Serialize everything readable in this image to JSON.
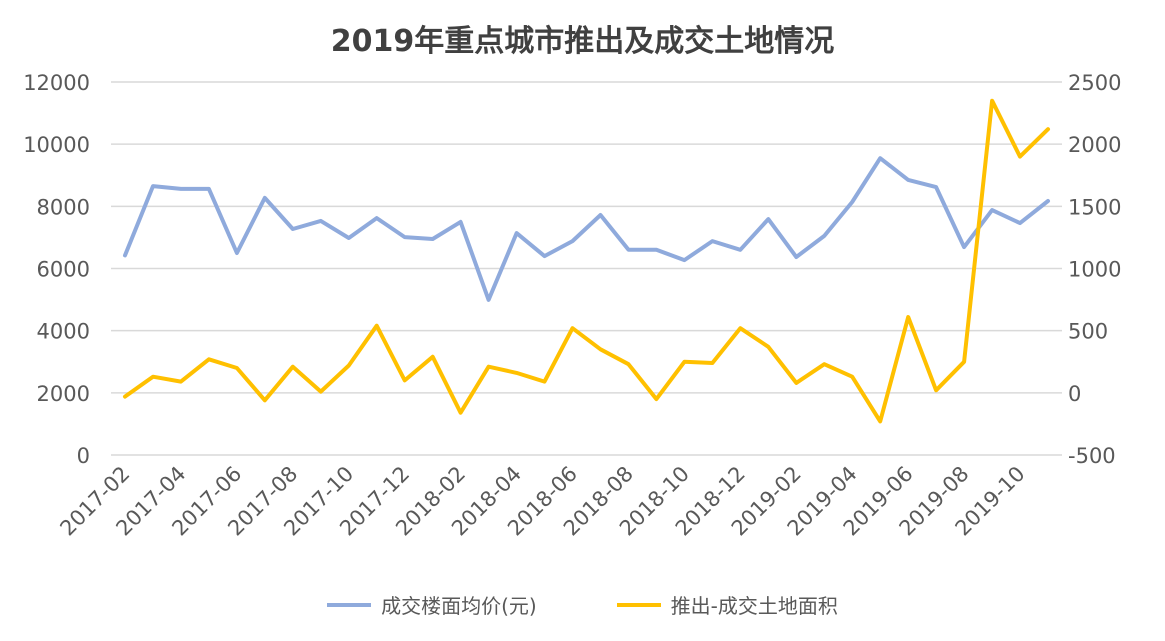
{
  "chart_data": {
    "type": "line",
    "title": "2019年重点城市推出及成交土地情况",
    "categories": [
      "2017-02",
      "2017-03",
      "2017-04",
      "2017-05",
      "2017-06",
      "2017-07",
      "2017-08",
      "2017-09",
      "2017-10",
      "2017-11",
      "2017-12",
      "2018-01",
      "2018-02",
      "2018-03",
      "2018-04",
      "2018-05",
      "2018-06",
      "2018-07",
      "2018-08",
      "2018-09",
      "2018-10",
      "2018-11",
      "2018-12",
      "2019-01",
      "2019-02",
      "2019-03",
      "2019-04",
      "2019-05",
      "2019-06",
      "2019-07",
      "2019-08",
      "2019-09",
      "2019-10",
      "2019-11"
    ],
    "tick_labels": [
      "2017-02",
      "2017-04",
      "2017-06",
      "2017-08",
      "2017-10",
      "2017-12",
      "2018-02",
      "2018-04",
      "2018-06",
      "2018-08",
      "2018-10",
      "2018-12",
      "2019-02",
      "2019-04",
      "2019-06",
      "2019-08",
      "2019-10"
    ],
    "left_axis": {
      "ylim": [
        0,
        12000
      ],
      "ticks": [
        "0",
        "2000",
        "4000",
        "6000",
        "8000",
        "10000",
        "12000"
      ]
    },
    "right_axis": {
      "ylim": [
        -500,
        2500
      ],
      "ticks": [
        "-500",
        "0",
        "500",
        "1000",
        "1500",
        "2000",
        "2500"
      ]
    },
    "grid": true,
    "legend_position": "bottom",
    "series": [
      {
        "name": "成交楼面均价(元)",
        "axis": "left",
        "color": "#8faadc",
        "values": [
          6420,
          8650,
          8560,
          8560,
          6500,
          8270,
          7270,
          7530,
          6980,
          7620,
          7010,
          6950,
          7500,
          4990,
          7140,
          6400,
          6880,
          7720,
          6600,
          6600,
          6270,
          6880,
          6600,
          7590,
          6370,
          7050,
          8140,
          9550,
          8850,
          8620,
          6690,
          7880,
          7460,
          8170
        ]
      },
      {
        "name": "推出-成交土地面积",
        "axis": "right",
        "color": "#ffc000",
        "values": [
          -30,
          130,
          90,
          270,
          200,
          -60,
          210,
          10,
          220,
          540,
          100,
          290,
          -160,
          210,
          160,
          90,
          520,
          350,
          230,
          -50,
          250,
          240,
          520,
          370,
          80,
          230,
          130,
          -230,
          610,
          20,
          250,
          2350,
          1900,
          2120
        ]
      }
    ]
  }
}
